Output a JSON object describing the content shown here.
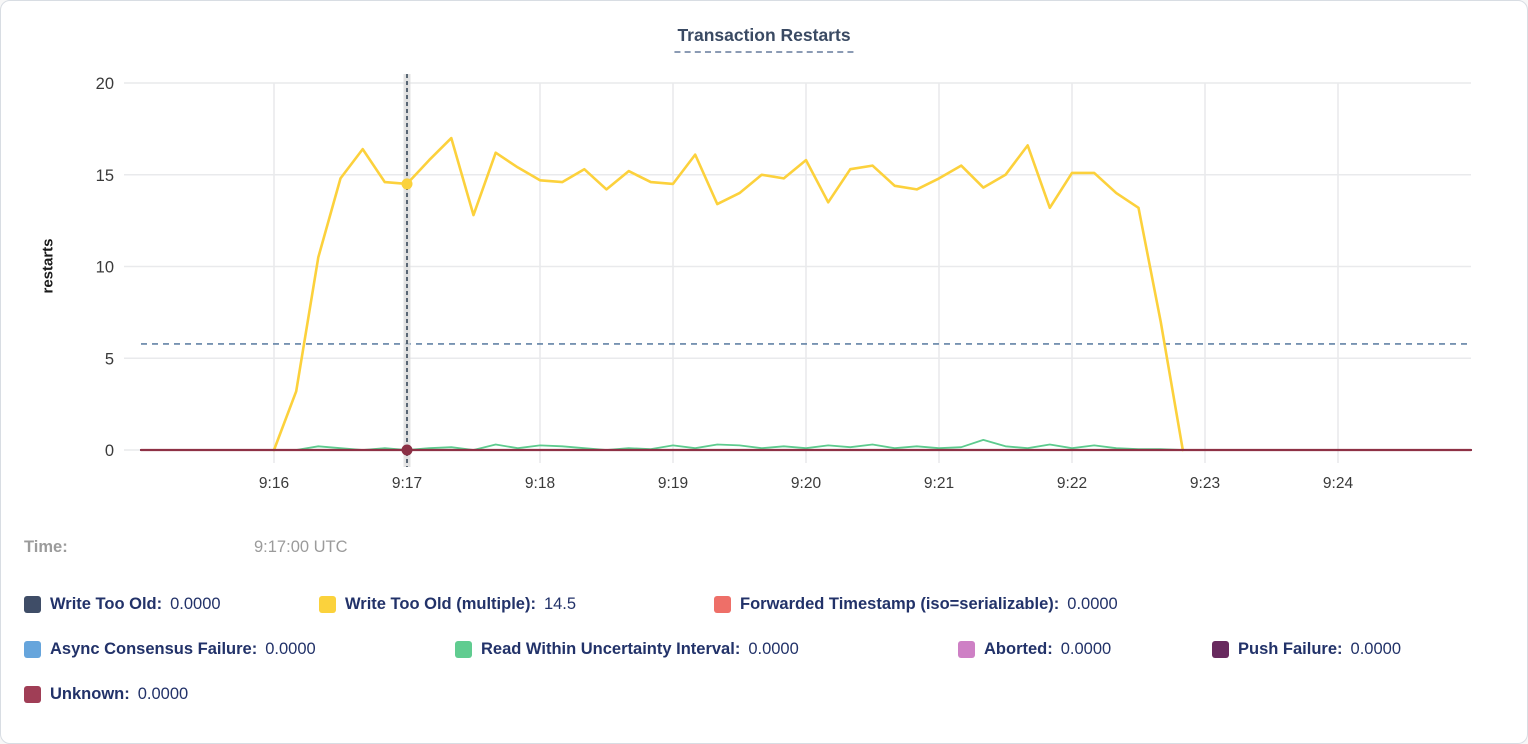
{
  "card": {
    "title": "Transaction Restarts"
  },
  "tooltip": {
    "label": "Time:",
    "value": "9:17:00 UTC"
  },
  "chart_data": {
    "type": "line",
    "title": "Transaction Restarts",
    "xlabel": "",
    "ylabel": "restarts",
    "ylim": [
      0,
      20
    ],
    "yticks": [
      0,
      5,
      10,
      15,
      20
    ],
    "x_window": {
      "start": "9:15:00",
      "end": "9:25:00"
    },
    "x_domain_minutes": [
      15,
      25
    ],
    "xticks": [
      {
        "m": 16,
        "label": "9:16"
      },
      {
        "m": 17,
        "label": "9:17"
      },
      {
        "m": 18,
        "label": "9:18"
      },
      {
        "m": 19,
        "label": "9:19"
      },
      {
        "m": 20,
        "label": "9:20"
      },
      {
        "m": 21,
        "label": "9:21"
      },
      {
        "m": 22,
        "label": "9:22"
      },
      {
        "m": 23,
        "label": "9:23"
      },
      {
        "m": 24,
        "label": "9:24"
      }
    ],
    "grid": true,
    "threshold": {
      "value": 5.78,
      "color": "#6383a6"
    },
    "hover": {
      "minute": 17,
      "time_label": "9:17:00 UTC",
      "line_color": "#2c3e50",
      "band_color": "#d9d9d9",
      "points": [
        {
          "series": "Write Too Old (multiple)",
          "value": 14.5,
          "color": "#fbd23c"
        },
        {
          "series": "Unknown",
          "value": 0,
          "color": "#8b3045"
        }
      ]
    },
    "series": [
      {
        "name": "Write Too Old (multiple)",
        "color": "#fcd13c",
        "width": 2.6,
        "start_min": 16,
        "step_sec": 10,
        "values": [
          0,
          3.2,
          10.5,
          14.8,
          16.4,
          14.6,
          14.5,
          15.8,
          17,
          12.8,
          16.2,
          15.4,
          14.7,
          14.6,
          15.3,
          14.2,
          15.2,
          14.6,
          14.5,
          16.1,
          13.4,
          14,
          15,
          14.8,
          15.8,
          13.5,
          15.3,
          15.5,
          14.4,
          14.2,
          14.8,
          15.5,
          14.3,
          15,
          16.6,
          13.2,
          15.1,
          15.1,
          14,
          13.2,
          7,
          0
        ]
      },
      {
        "name": "Read Within Uncertainty Interval",
        "color": "#5dcb8e",
        "width": 1.8,
        "start_min": 16,
        "step_sec": 10,
        "values": [
          0,
          0,
          0.2,
          0.1,
          0,
          0.1,
          0,
          0.1,
          0.15,
          0,
          0.3,
          0.1,
          0.25,
          0.2,
          0.1,
          0,
          0.1,
          0.05,
          0.25,
          0.1,
          0.3,
          0.25,
          0.1,
          0.2,
          0.1,
          0.25,
          0.15,
          0.3,
          0.1,
          0.2,
          0.1,
          0.15,
          0.55,
          0.2,
          0.1,
          0.3,
          0.1,
          0.25,
          0.1,
          0.05,
          0.05,
          0
        ]
      },
      {
        "name": "Write Too Old",
        "color": "#3f4d67",
        "width": 2,
        "flat_zero": true
      },
      {
        "name": "Forwarded Timestamp (iso=serializable)",
        "color": "#ee6f68",
        "width": 2,
        "flat_zero": true
      },
      {
        "name": "Async Consensus Failure",
        "color": "#66a5dc",
        "width": 2,
        "flat_zero": true
      },
      {
        "name": "Aborted",
        "color": "#ce80c5",
        "width": 2,
        "flat_zero": true
      },
      {
        "name": "Push Failure",
        "color": "#682a5e",
        "width": 2,
        "flat_zero": true
      },
      {
        "name": "Unknown",
        "color": "#8e3145",
        "width": 2.2,
        "flat_zero": true
      }
    ]
  },
  "legend": {
    "rows": [
      [
        {
          "label": "Write Too Old:",
          "value": "0.0000",
          "color": "#3f4d67"
        },
        {
          "label": "Write Too Old (multiple):",
          "value": "14.5",
          "color": "#fbd23c"
        },
        {
          "label": "Forwarded Timestamp (iso=serializable):",
          "value": "0.0000",
          "color": "#ee6f68"
        }
      ],
      [
        {
          "label": "Async Consensus Failure:",
          "value": "0.0000",
          "color": "#66a5dc"
        },
        {
          "label": "Read Within Uncertainty Interval:",
          "value": "0.0000",
          "color": "#60cc90"
        },
        {
          "label": "Aborted:",
          "value": "0.0000",
          "color": "#ce80c5"
        },
        {
          "label": "Push Failure:",
          "value": "0.0000",
          "color": "#682a5e"
        }
      ],
      [
        {
          "label": "Unknown:",
          "value": "0.0000",
          "color": "#a03e56"
        }
      ]
    ]
  },
  "colors": {
    "grid": "#e9eaec",
    "axis_text": "#3a3a3a",
    "title": "#3a4a63",
    "legend_text": "#223269",
    "tooltip_text": "#9b9b9b"
  }
}
